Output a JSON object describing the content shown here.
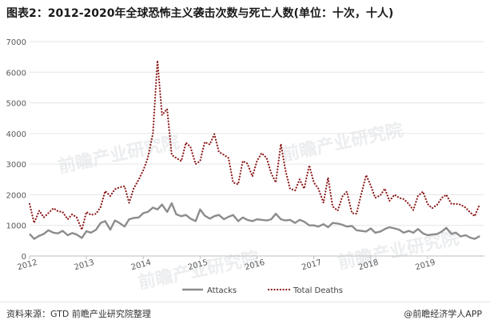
{
  "title": "图表2：2012-2020年全球恐怖主义袭击次数与死亡人数(单位：十次，十人)",
  "source_text": "资料来源：GTD 前瞻产业研究院整理",
  "brand_text": "@前瞻经济学人APP",
  "watermark": "前瞻产业研究院",
  "colors": {
    "attacks": "#8c8c8c",
    "deaths": "#8b1a1a",
    "grid": "#e6e6e6",
    "axis_text": "#595959"
  },
  "chart_data": {
    "type": "line",
    "xlim": [
      2012,
      2020
    ],
    "xticks": [
      "2012",
      "2013",
      "2014",
      "2015",
      "2016",
      "2017",
      "2018",
      "2019"
    ],
    "ylim": [
      0,
      7000
    ],
    "yticks": [
      "0",
      "1000",
      "2000",
      "3000",
      "4000",
      "5000",
      "6000",
      "7000"
    ],
    "legend_position": "bottom",
    "series": [
      {
        "name": "Attacks",
        "style": "solid",
        "points": [
          [
            2012.0,
            720
          ],
          [
            2012.08,
            560
          ],
          [
            2012.17,
            660
          ],
          [
            2012.25,
            720
          ],
          [
            2012.33,
            840
          ],
          [
            2012.42,
            760
          ],
          [
            2012.5,
            740
          ],
          [
            2012.58,
            820
          ],
          [
            2012.67,
            680
          ],
          [
            2012.75,
            750
          ],
          [
            2012.83,
            700
          ],
          [
            2012.92,
            590
          ],
          [
            2013.0,
            810
          ],
          [
            2013.08,
            760
          ],
          [
            2013.17,
            860
          ],
          [
            2013.25,
            1080
          ],
          [
            2013.33,
            1140
          ],
          [
            2013.42,
            860
          ],
          [
            2013.5,
            1160
          ],
          [
            2013.58,
            1080
          ],
          [
            2013.67,
            960
          ],
          [
            2013.75,
            1200
          ],
          [
            2013.83,
            1240
          ],
          [
            2013.92,
            1260
          ],
          [
            2014.0,
            1400
          ],
          [
            2014.08,
            1440
          ],
          [
            2014.17,
            1580
          ],
          [
            2014.25,
            1520
          ],
          [
            2014.33,
            1680
          ],
          [
            2014.42,
            1440
          ],
          [
            2014.5,
            1720
          ],
          [
            2014.58,
            1360
          ],
          [
            2014.67,
            1300
          ],
          [
            2014.75,
            1340
          ],
          [
            2014.83,
            1220
          ],
          [
            2014.92,
            1140
          ],
          [
            2015.0,
            1520
          ],
          [
            2015.08,
            1320
          ],
          [
            2015.17,
            1220
          ],
          [
            2015.25,
            1300
          ],
          [
            2015.33,
            1340
          ],
          [
            2015.42,
            1200
          ],
          [
            2015.5,
            1280
          ],
          [
            2015.58,
            1340
          ],
          [
            2015.67,
            1140
          ],
          [
            2015.75,
            1260
          ],
          [
            2015.83,
            1180
          ],
          [
            2015.92,
            1140
          ],
          [
            2016.0,
            1200
          ],
          [
            2016.08,
            1180
          ],
          [
            2016.17,
            1160
          ],
          [
            2016.25,
            1200
          ],
          [
            2016.33,
            1380
          ],
          [
            2016.42,
            1200
          ],
          [
            2016.5,
            1160
          ],
          [
            2016.58,
            1180
          ],
          [
            2016.67,
            1080
          ],
          [
            2016.75,
            1180
          ],
          [
            2016.83,
            1120
          ],
          [
            2016.92,
            1000
          ],
          [
            2017.0,
            1000
          ],
          [
            2017.08,
            960
          ],
          [
            2017.17,
            1040
          ],
          [
            2017.25,
            940
          ],
          [
            2017.33,
            1080
          ],
          [
            2017.42,
            1060
          ],
          [
            2017.5,
            1020
          ],
          [
            2017.58,
            960
          ],
          [
            2017.67,
            980
          ],
          [
            2017.75,
            840
          ],
          [
            2017.83,
            820
          ],
          [
            2017.92,
            800
          ],
          [
            2018.0,
            900
          ],
          [
            2018.08,
            760
          ],
          [
            2018.17,
            800
          ],
          [
            2018.25,
            880
          ],
          [
            2018.33,
            940
          ],
          [
            2018.42,
            900
          ],
          [
            2018.5,
            860
          ],
          [
            2018.58,
            760
          ],
          [
            2018.67,
            820
          ],
          [
            2018.75,
            760
          ],
          [
            2018.83,
            880
          ],
          [
            2018.92,
            740
          ],
          [
            2019.0,
            680
          ],
          [
            2019.08,
            700
          ],
          [
            2019.17,
            720
          ],
          [
            2019.25,
            800
          ],
          [
            2019.33,
            920
          ],
          [
            2019.42,
            720
          ],
          [
            2019.5,
            760
          ],
          [
            2019.58,
            640
          ],
          [
            2019.67,
            680
          ],
          [
            2019.75,
            600
          ],
          [
            2019.83,
            560
          ],
          [
            2019.92,
            650
          ]
        ]
      },
      {
        "name": "Total Deaths",
        "style": "dotted",
        "points": [
          [
            2012.0,
            1700
          ],
          [
            2012.08,
            1080
          ],
          [
            2012.17,
            1480
          ],
          [
            2012.25,
            1260
          ],
          [
            2012.33,
            1400
          ],
          [
            2012.42,
            1560
          ],
          [
            2012.5,
            1460
          ],
          [
            2012.58,
            1440
          ],
          [
            2012.67,
            1200
          ],
          [
            2012.75,
            1360
          ],
          [
            2012.83,
            1260
          ],
          [
            2012.92,
            860
          ],
          [
            2013.0,
            1440
          ],
          [
            2013.08,
            1340
          ],
          [
            2013.17,
            1380
          ],
          [
            2013.25,
            1600
          ],
          [
            2013.33,
            2120
          ],
          [
            2013.42,
            1960
          ],
          [
            2013.5,
            2180
          ],
          [
            2013.58,
            2240
          ],
          [
            2013.67,
            2280
          ],
          [
            2013.75,
            1740
          ],
          [
            2013.83,
            2200
          ],
          [
            2013.92,
            2500
          ],
          [
            2014.0,
            2800
          ],
          [
            2014.08,
            3200
          ],
          [
            2014.17,
            4000
          ],
          [
            2014.25,
            6380
          ],
          [
            2014.33,
            4600
          ],
          [
            2014.42,
            4800
          ],
          [
            2014.5,
            3300
          ],
          [
            2014.58,
            3200
          ],
          [
            2014.67,
            3100
          ],
          [
            2014.75,
            3700
          ],
          [
            2014.83,
            3560
          ],
          [
            2014.92,
            3000
          ],
          [
            2015.0,
            3100
          ],
          [
            2015.08,
            3720
          ],
          [
            2015.17,
            3640
          ],
          [
            2015.25,
            3980
          ],
          [
            2015.33,
            3400
          ],
          [
            2015.42,
            3300
          ],
          [
            2015.5,
            3200
          ],
          [
            2015.58,
            2400
          ],
          [
            2015.67,
            2340
          ],
          [
            2015.75,
            3100
          ],
          [
            2015.83,
            3020
          ],
          [
            2015.92,
            2600
          ],
          [
            2016.0,
            3100
          ],
          [
            2016.08,
            3360
          ],
          [
            2016.17,
            3200
          ],
          [
            2016.25,
            2700
          ],
          [
            2016.33,
            2400
          ],
          [
            2016.42,
            3660
          ],
          [
            2016.5,
            2800
          ],
          [
            2016.58,
            2200
          ],
          [
            2016.67,
            2140
          ],
          [
            2016.75,
            2500
          ],
          [
            2016.83,
            2200
          ],
          [
            2016.92,
            2960
          ],
          [
            2017.0,
            2400
          ],
          [
            2017.08,
            2200
          ],
          [
            2017.17,
            1740
          ],
          [
            2017.25,
            2560
          ],
          [
            2017.33,
            1620
          ],
          [
            2017.42,
            1480
          ],
          [
            2017.5,
            1940
          ],
          [
            2017.58,
            2100
          ],
          [
            2017.67,
            1400
          ],
          [
            2017.75,
            1380
          ],
          [
            2017.83,
            2000
          ],
          [
            2017.92,
            2640
          ],
          [
            2018.0,
            2300
          ],
          [
            2018.08,
            1900
          ],
          [
            2018.17,
            1980
          ],
          [
            2018.25,
            2200
          ],
          [
            2018.33,
            1800
          ],
          [
            2018.42,
            2000
          ],
          [
            2018.5,
            1900
          ],
          [
            2018.58,
            1860
          ],
          [
            2018.67,
            1700
          ],
          [
            2018.75,
            1500
          ],
          [
            2018.83,
            1960
          ],
          [
            2018.92,
            2100
          ],
          [
            2019.0,
            1700
          ],
          [
            2019.08,
            1560
          ],
          [
            2019.17,
            1680
          ],
          [
            2019.25,
            1900
          ],
          [
            2019.33,
            2000
          ],
          [
            2019.42,
            1700
          ],
          [
            2019.5,
            1700
          ],
          [
            2019.58,
            1680
          ],
          [
            2019.67,
            1580
          ],
          [
            2019.75,
            1420
          ],
          [
            2019.83,
            1300
          ],
          [
            2019.92,
            1700
          ]
        ]
      }
    ]
  }
}
